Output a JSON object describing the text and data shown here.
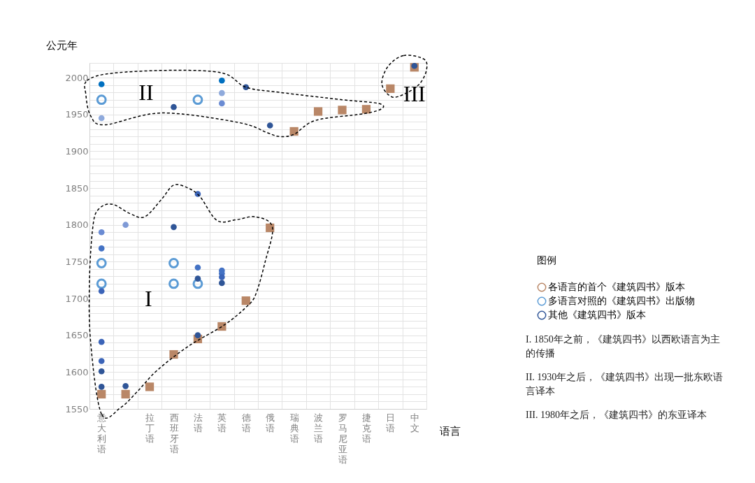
{
  "chart_data": {
    "type": "scatter",
    "xlabel": "语言",
    "ylabel": "公元年",
    "legend_title": "图例",
    "legend": "right",
    "grid": true,
    "categories": [
      "意大利语",
      null,
      "拉丁语",
      "西班牙语",
      "法语",
      "英语",
      "德语",
      "俄语",
      "瑞典语",
      "波兰语",
      "罗马尼亚语",
      "捷克语",
      "日语",
      "中文"
    ],
    "ylim": [
      1550,
      2020
    ],
    "yticks": [
      1550,
      {
        "value": 1560,
        "label": null
      },
      {
        "value": 1570,
        "label": null
      },
      {
        "value": 1580,
        "label": null
      },
      {
        "value": 1590,
        "label": null
      },
      1600,
      {
        "value": 1610,
        "label": null
      },
      {
        "value": 1620,
        "label": null
      },
      {
        "value": 1630,
        "label": null
      },
      {
        "value": 1640,
        "label": null
      },
      1650,
      {
        "value": 1660,
        "label": null
      },
      {
        "value": 1670,
        "label": null
      },
      {
        "value": 1680,
        "label": null
      },
      {
        "value": 1690,
        "label": null
      },
      1700,
      {
        "value": 1710,
        "label": null
      },
      {
        "value": 1720,
        "label": null
      },
      {
        "value": 1730,
        "label": null
      },
      {
        "value": 1740,
        "label": null
      },
      1750,
      {
        "value": 1760,
        "label": null
      },
      {
        "value": 1770,
        "label": null
      },
      {
        "value": 1780,
        "label": null
      },
      {
        "value": 1790,
        "label": null
      },
      1800,
      {
        "value": 1810,
        "label": null
      },
      {
        "value": 1820,
        "label": null
      },
      {
        "value": 1830,
        "label": null
      },
      {
        "value": 1840,
        "label": null
      },
      1850,
      {
        "value": 1860,
        "label": null
      },
      {
        "value": 1870,
        "label": null
      },
      {
        "value": 1880,
        "label": null
      },
      {
        "value": 1890,
        "label": null
      },
      1900,
      {
        "value": 1910,
        "label": null
      },
      {
        "value": 1920,
        "label": null
      },
      {
        "value": 1930,
        "label": null
      },
      {
        "value": 1940,
        "label": null
      },
      1950,
      {
        "value": 1960,
        "label": null
      },
      {
        "value": 1970,
        "label": null
      },
      {
        "value": 1980,
        "label": null
      },
      {
        "value": 1990,
        "label": null
      },
      2000,
      {
        "value": 2010,
        "label": null
      },
      {
        "value": 2020,
        "label": null
      }
    ],
    "series": [
      {
        "name": "各语言的首个《建筑四书》版本",
        "marker": "square",
        "color": "#b98767",
        "values": [
          1570,
          1570,
          1580,
          1624,
          1645,
          1662,
          1697,
          1796,
          1927,
          1954,
          1956,
          1957,
          1985,
          2014
        ]
      },
      {
        "name": "多语言对照的《建筑四书》出版物",
        "marker": "circle",
        "color": "#5b9bd5",
        "values": [
          1970,
          null,
          null,
          1748,
          1970,
          null,
          null,
          null,
          null,
          null,
          null,
          null,
          null,
          null
        ]
      },
      {
        "marker": "circle",
        "color": "#5b9bd5",
        "values": [
          1748,
          null,
          null,
          1720,
          1720,
          null,
          null,
          null,
          null,
          null,
          null,
          null,
          null,
          null
        ]
      },
      {
        "marker": "circle",
        "color": "#5b9bd5",
        "values": [
          1720,
          null,
          null,
          null,
          null,
          null,
          null,
          null,
          null,
          null,
          null,
          null,
          null,
          null
        ]
      },
      {
        "name": "其他《建筑四书》版本",
        "marker": "circle",
        "color": "#2f5597",
        "values": [
          1991,
          1800,
          null,
          1960,
          1842,
          1996,
          1987,
          1935,
          null,
          null,
          null,
          null,
          null,
          2016
        ],
        "colors": [
          "#0070c0",
          "#7f9ad6",
          null,
          "#2f5597",
          "#3b64b8",
          "#0070c0",
          "#2f5597",
          "#2f5597",
          null,
          null,
          null,
          null,
          null,
          "#2f5597"
        ]
      },
      {
        "marker": "circle",
        "color": "#2f5597",
        "values": [
          1945,
          1581,
          null,
          1797,
          1742,
          1979,
          null,
          null,
          null,
          null,
          null,
          null,
          null,
          null
        ],
        "colors": [
          "#8faadc",
          "#2f5597",
          null,
          "#2f5597",
          "#4472c4",
          "#8faadc",
          null,
          null,
          null,
          null,
          null,
          null,
          null,
          null
        ]
      },
      {
        "marker": "circle",
        "color": "#2f5597",
        "values": [
          1790,
          null,
          null,
          null,
          1727,
          1965,
          null,
          null,
          null,
          null,
          null,
          null,
          null,
          null
        ],
        "colors": [
          "#6a8bd3",
          null,
          null,
          null,
          "#2f5597",
          "#6a8bd3",
          null,
          null,
          null,
          null,
          null,
          null,
          null,
          null
        ]
      },
      {
        "marker": "circle",
        "color": "#2f5597",
        "values": [
          1768,
          null,
          null,
          null,
          1650,
          1738,
          null,
          null,
          null,
          null,
          null,
          null,
          null,
          null
        ],
        "colors": [
          "#4472c4",
          null,
          null,
          null,
          "#2f5597",
          "#4472c4",
          null,
          null,
          null,
          null,
          null,
          null,
          null,
          null
        ]
      },
      {
        "marker": "circle",
        "color": "#2f5597",
        "values": [
          1710,
          null,
          null,
          null,
          null,
          1734,
          null,
          null,
          null,
          null,
          null,
          null,
          null,
          null
        ],
        "colors": [
          "#3b64b8",
          null,
          null,
          null,
          null,
          "#4472c4",
          null,
          null,
          null,
          null,
          null,
          null,
          null,
          null
        ]
      },
      {
        "marker": "circle",
        "color": "#2f5597",
        "values": [
          1641,
          null,
          null,
          null,
          null,
          1729,
          null,
          null,
          null,
          null,
          null,
          null,
          null,
          null
        ],
        "colors": [
          "#3b64b8",
          null,
          null,
          null,
          null,
          "#3b64b8",
          null,
          null,
          null,
          null,
          null,
          null,
          null,
          null
        ]
      },
      {
        "marker": "circle",
        "color": "#2f5597",
        "values": [
          1615,
          null,
          null,
          null,
          null,
          1721,
          null,
          null,
          null,
          null,
          null,
          null,
          null,
          null
        ],
        "colors": [
          "#3b64b8",
          null,
          null,
          null,
          null,
          "#2f5597",
          null,
          null,
          null,
          null,
          null,
          null,
          null,
          null
        ]
      },
      {
        "marker": "circle",
        "color": "#2f5597",
        "values": [
          1601,
          null,
          null,
          null,
          null,
          null,
          null,
          null,
          null,
          null,
          null,
          null,
          null,
          null
        ],
        "colors": [
          "#2f5597",
          null,
          null,
          null,
          null,
          null,
          null,
          null,
          null,
          null,
          null,
          null,
          null,
          null
        ]
      },
      {
        "marker": "circle",
        "color": "#2f5597",
        "values": [
          1580,
          null,
          null,
          null,
          null,
          null,
          null,
          null,
          null,
          null,
          null,
          null,
          null,
          null
        ],
        "colors": [
          "#2f5597",
          null,
          null,
          null,
          null,
          null,
          null,
          null,
          null,
          null,
          null,
          null,
          null,
          null
        ]
      }
    ],
    "annotations": [
      "I",
      "II",
      "III",
      "I. 1850年之前，《建筑四书》以西欧语言为主的传播",
      "II. 1930年之后，《建筑四书》出现一批东欧语言译本",
      "III. 1980年之后，《建筑四书》的东亚译本"
    ]
  }
}
